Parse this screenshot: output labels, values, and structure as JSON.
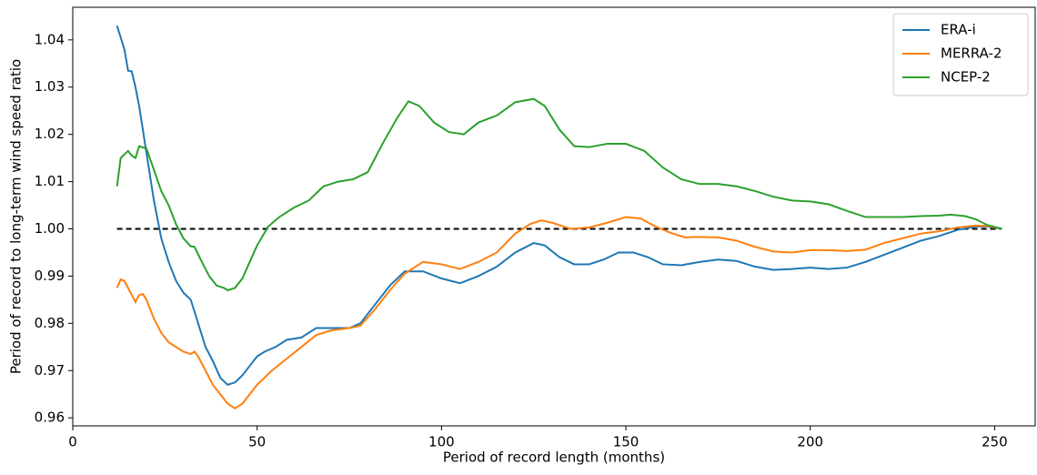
{
  "chart_data": {
    "type": "line",
    "xlabel": "Period of record length (months)",
    "ylabel": "Period of record to long-term wind speed ratio",
    "xlim": [
      0,
      261
    ],
    "ylim": [
      0.9583,
      1.0469
    ],
    "xticks": [
      0,
      50,
      100,
      150,
      200,
      250
    ],
    "yticks": [
      0.96,
      0.97,
      0.98,
      0.99,
      {
        "value": 1,
        "label": "1.00"
      },
      1.01,
      1.02,
      1.03,
      1.04
    ],
    "legend": "upper right",
    "reference_line": {
      "value": 1,
      "x": [
        12,
        252
      ],
      "color": "#000000"
    },
    "series": [
      {
        "name": "ERA-i",
        "color": "#1f77b4",
        "x": [
          12,
          14,
          15,
          16,
          17,
          18,
          20,
          22,
          24,
          26,
          28,
          30,
          32,
          34,
          36,
          38,
          40,
          42,
          44,
          46,
          48,
          50,
          52,
          55,
          58,
          62,
          66,
          70,
          75,
          78,
          82,
          86,
          90,
          95,
          100,
          105,
          110,
          115,
          120,
          125,
          128,
          132,
          136,
          140,
          144,
          148,
          152,
          156,
          160,
          165,
          170,
          175,
          180,
          185,
          190,
          195,
          200,
          205,
          210,
          215,
          220,
          225,
          230,
          235,
          240,
          245,
          248,
          252
        ],
        "values": [
          1.043,
          1.038,
          1.0335,
          1.0333,
          1.03,
          1.026,
          1.016,
          1.006,
          0.998,
          0.993,
          0.989,
          0.9865,
          0.985,
          0.98,
          0.975,
          0.972,
          0.9685,
          0.967,
          0.9675,
          0.969,
          0.971,
          0.973,
          0.974,
          0.975,
          0.9765,
          0.977,
          0.979,
          0.979,
          0.979,
          0.98,
          0.984,
          0.988,
          0.991,
          0.991,
          0.9895,
          0.9885,
          0.99,
          0.992,
          0.995,
          0.997,
          0.9965,
          0.994,
          0.9925,
          0.9925,
          0.9935,
          0.995,
          0.995,
          0.994,
          0.9925,
          0.9923,
          0.993,
          0.9935,
          0.9932,
          0.992,
          0.9913,
          0.9915,
          0.9918,
          0.9915,
          0.9918,
          0.993,
          0.9945,
          0.996,
          0.9975,
          0.9985,
          0.9998,
          1.0005,
          1.0005,
          1.0
        ]
      },
      {
        "name": "MERRA-2",
        "color": "#ff7f0e",
        "x": [
          12,
          13,
          14,
          16,
          17,
          18,
          19,
          20,
          22,
          24,
          26,
          28,
          30,
          32,
          33,
          34,
          36,
          38,
          40,
          42,
          44,
          46,
          48,
          50,
          54,
          58,
          62,
          66,
          70,
          75,
          78,
          82,
          86,
          90,
          95,
          100,
          105,
          110,
          115,
          120,
          124,
          127,
          130,
          135,
          140,
          145,
          150,
          154,
          158,
          162,
          166,
          170,
          175,
          180,
          185,
          190,
          195,
          200,
          205,
          210,
          215,
          220,
          225,
          230,
          235,
          240,
          245,
          248,
          252
        ],
        "values": [
          0.9875,
          0.9893,
          0.989,
          0.986,
          0.9845,
          0.986,
          0.9862,
          0.985,
          0.981,
          0.978,
          0.976,
          0.975,
          0.974,
          0.9735,
          0.974,
          0.973,
          0.97,
          0.967,
          0.965,
          0.963,
          0.962,
          0.963,
          0.965,
          0.967,
          0.97,
          0.9725,
          0.975,
          0.9775,
          0.9785,
          0.979,
          0.9795,
          0.983,
          0.987,
          0.9905,
          0.993,
          0.9925,
          0.9915,
          0.993,
          0.995,
          0.999,
          1.001,
          1.0018,
          1.0013,
          1.0,
          1.0003,
          1.0013,
          1.0025,
          1.0022,
          1.0005,
          0.9992,
          0.9982,
          0.9983,
          0.9982,
          0.9975,
          0.9962,
          0.9952,
          0.995,
          0.9955,
          0.9955,
          0.9953,
          0.9956,
          0.997,
          0.998,
          0.999,
          0.9995,
          1.0003,
          1.0007,
          1.0006,
          1.0
        ]
      },
      {
        "name": "NCEP-2",
        "color": "#2ca02c",
        "x": [
          12,
          13,
          15,
          16,
          17,
          18,
          20,
          22,
          24,
          26,
          28,
          30,
          32,
          33,
          35,
          37,
          39,
          41,
          42,
          44,
          46,
          48,
          50,
          53,
          56,
          60,
          64,
          68,
          72,
          76,
          80,
          84,
          88,
          91,
          94,
          98,
          102,
          106,
          110,
          115,
          120,
          125,
          128,
          132,
          136,
          140,
          145,
          150,
          155,
          160,
          165,
          170,
          175,
          180,
          185,
          190,
          195,
          200,
          205,
          210,
          215,
          220,
          225,
          230,
          235,
          238,
          242,
          245,
          248,
          252
        ],
        "values": [
          1.009,
          1.015,
          1.0165,
          1.0155,
          1.015,
          1.0175,
          1.017,
          1.0125,
          1.008,
          1.005,
          1.001,
          0.998,
          0.9963,
          0.9962,
          0.993,
          0.99,
          0.988,
          0.9875,
          0.987,
          0.9875,
          0.9895,
          0.993,
          0.9965,
          1.0005,
          1.0025,
          1.0045,
          1.006,
          1.009,
          1.01,
          1.0105,
          1.012,
          1.018,
          1.0235,
          1.027,
          1.026,
          1.0225,
          1.0205,
          1.02,
          1.0225,
          1.024,
          1.0268,
          1.0275,
          1.026,
          1.021,
          1.0175,
          1.0173,
          1.018,
          1.018,
          1.0165,
          1.013,
          1.0105,
          1.0095,
          1.0095,
          1.009,
          1.008,
          1.0068,
          1.006,
          1.0058,
          1.0052,
          1.0038,
          1.0025,
          1.0025,
          1.0025,
          1.0027,
          1.0028,
          1.003,
          1.0027,
          1.002,
          1.0008,
          1.0
        ]
      }
    ]
  }
}
